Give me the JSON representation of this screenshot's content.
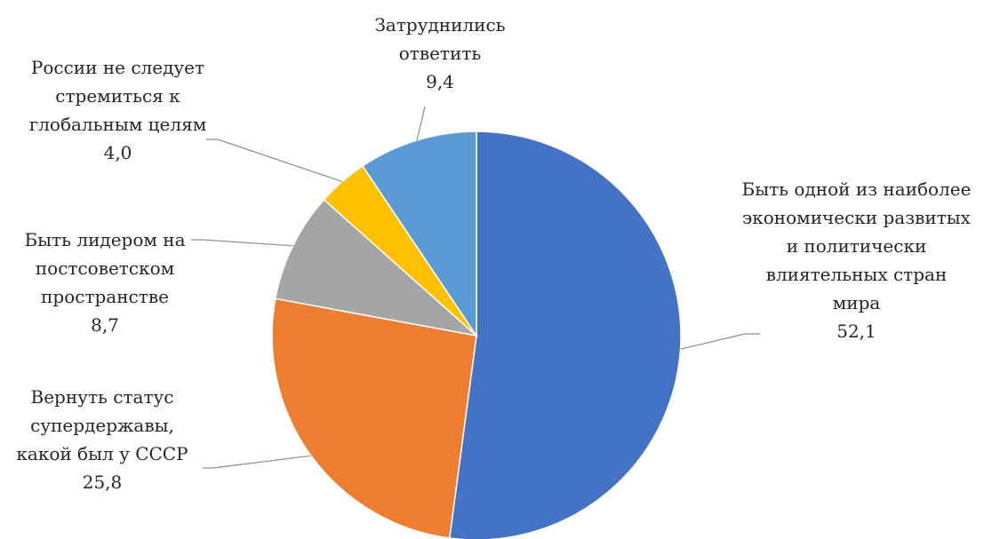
{
  "chart_data": {
    "type": "pie",
    "start_angle_deg": 0,
    "direction": "clockwise",
    "unit": "",
    "slices": [
      {
        "name": "Быть одной из наиболее экономически развитых и политически влиятельных стран мира",
        "label_lines": [
          "Быть одной из наиболее",
          "экономически развитых",
          "и политически",
          "влиятельных стран",
          "мира"
        ],
        "value": 52.1,
        "value_text": "52,1",
        "color": "#4472C4"
      },
      {
        "name": "Вернуть статус супердержавы, какой был у СССР",
        "label_lines": [
          "Вернуть статус",
          "супердержавы,",
          "какой был у СССР"
        ],
        "value": 25.8,
        "value_text": "25,8",
        "color": "#ED7D31"
      },
      {
        "name": "Быть лидером на постсоветском пространстве",
        "label_lines": [
          "Быть лидером на",
          "постсоветском",
          "пространстве"
        ],
        "value": 8.7,
        "value_text": "8,7",
        "color": "#A5A5A5"
      },
      {
        "name": "России не следует стремиться к глобальным целям",
        "label_lines": [
          "России не следует",
          "стремиться к",
          "глобальным целям"
        ],
        "value": 4.0,
        "value_text": "4,0",
        "color": "#FFC000"
      },
      {
        "name": "Затруднились ответить",
        "label_lines": [
          "Затруднились",
          "ответить"
        ],
        "value": 9.4,
        "value_text": "9,4",
        "color": "#5B9BD5"
      }
    ]
  }
}
